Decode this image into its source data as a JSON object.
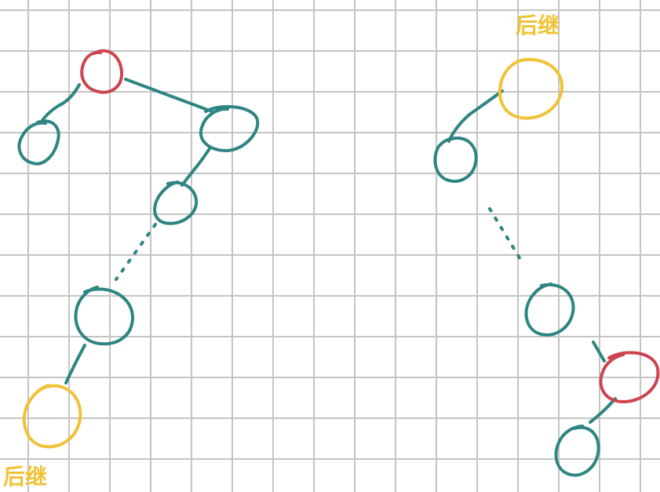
{
  "colors": {
    "grid": "#c4c4c4",
    "teal": "#2e8582",
    "red": "#cc4450",
    "yellow": "#f0c236"
  },
  "labels": {
    "left_successor": "后继",
    "right_successor": "后继"
  }
}
